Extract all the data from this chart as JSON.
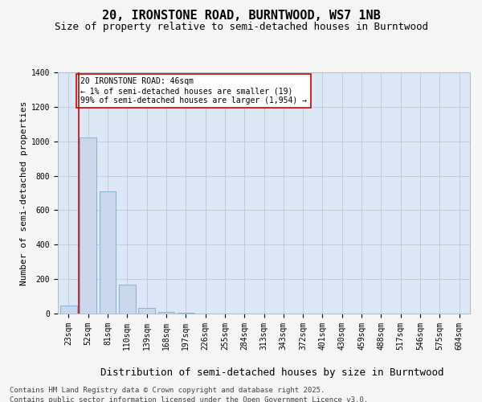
{
  "title_line1": "20, IRONSTONE ROAD, BURNTWOOD, WS7 1NB",
  "title_line2": "Size of property relative to semi-detached houses in Burntwood",
  "xlabel": "Distribution of semi-detached houses by size in Burntwood",
  "ylabel": "Number of semi-detached properties",
  "categories": [
    "23sqm",
    "52sqm",
    "81sqm",
    "110sqm",
    "139sqm",
    "168sqm",
    "197sqm",
    "226sqm",
    "255sqm",
    "284sqm",
    "313sqm",
    "343sqm",
    "372sqm",
    "401sqm",
    "430sqm",
    "459sqm",
    "488sqm",
    "517sqm",
    "546sqm",
    "575sqm",
    "604sqm"
  ],
  "values": [
    45,
    1020,
    710,
    170,
    35,
    10,
    3,
    0,
    0,
    0,
    0,
    0,
    0,
    0,
    0,
    0,
    0,
    0,
    0,
    0,
    0
  ],
  "bar_color": "#c8d8ea",
  "bar_edge_color": "#7aaace",
  "ylim": [
    0,
    1400
  ],
  "yticks": [
    0,
    200,
    400,
    600,
    800,
    1000,
    1200,
    1400
  ],
  "annotation_text": "20 IRONSTONE ROAD: 46sqm\n← 1% of semi-detached houses are smaller (19)\n99% of semi-detached houses are larger (1,954) →",
  "annotation_box_color": "#ffffff",
  "annotation_box_edge": "#cc0000",
  "vline_color": "#cc0000",
  "vline_x": 0.5,
  "fig_bg_color": "#f5f5f5",
  "plot_bg_color": "#dce8f5",
  "footer_line1": "Contains HM Land Registry data © Crown copyright and database right 2025.",
  "footer_line2": "Contains public sector information licensed under the Open Government Licence v3.0.",
  "title_fontsize": 11,
  "subtitle_fontsize": 9,
  "xlabel_fontsize": 9,
  "ylabel_fontsize": 8,
  "tick_fontsize": 7,
  "annot_fontsize": 7,
  "footer_fontsize": 6.5
}
